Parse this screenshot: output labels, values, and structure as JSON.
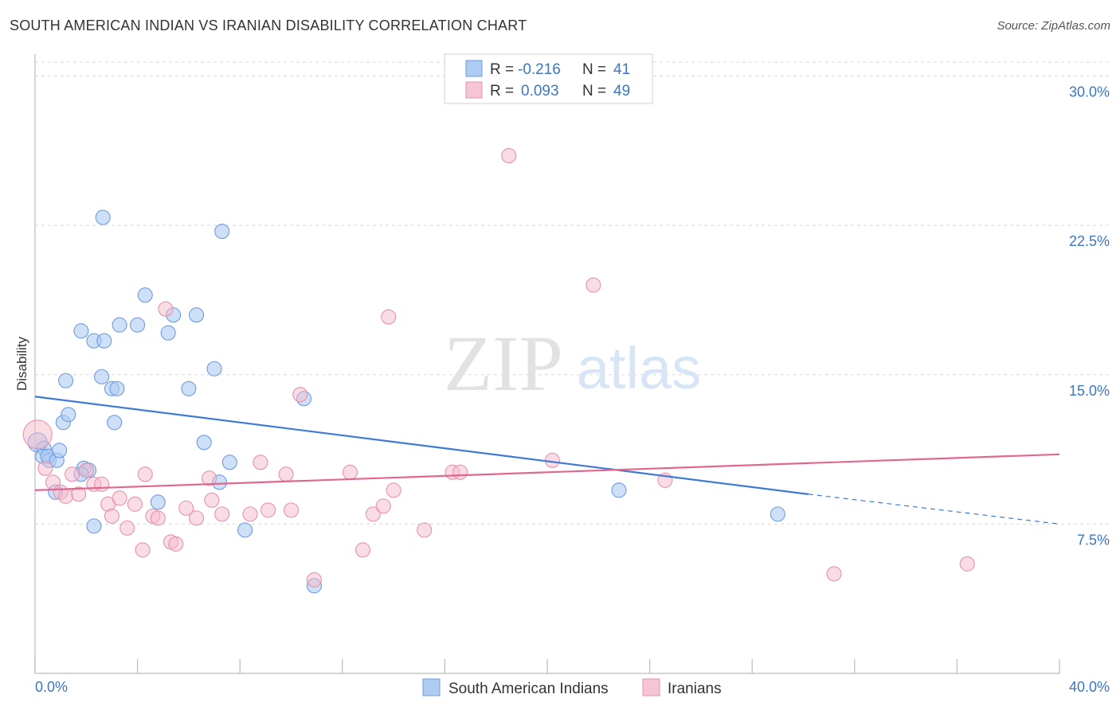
{
  "title": "SOUTH AMERICAN INDIAN VS IRANIAN DISABILITY CORRELATION CHART",
  "source": "Source: ZipAtlas.com",
  "watermark": {
    "zip": "ZIP",
    "atlas": "atlas"
  },
  "colors": {
    "blue": "#3f7ad6",
    "blue_fill": "#aecbf2",
    "pink": "#e0688f",
    "pink_fill": "#f6b9cc",
    "axis_text": "#3b76c4",
    "grid": "#d8d8d8"
  },
  "legend": {
    "rows": [
      {
        "r_label": "R =",
        "r_value": "-0.216",
        "n_label": "N =",
        "n_value": "41"
      },
      {
        "r_label": "R =",
        "r_value": "0.093",
        "n_label": "N =",
        "n_value": "49"
      }
    ]
  },
  "chart_data": {
    "type": "scatter",
    "xlabel": "",
    "ylabel": "Disability",
    "xlim": [
      0,
      40
    ],
    "ylim": [
      0,
      30.7
    ],
    "x_tick_labels": [
      "0.0%",
      "40.0%"
    ],
    "y_ticks": [
      7.5,
      15.0,
      22.5,
      30.0
    ],
    "y_tick_labels": [
      "7.5%",
      "15.0%",
      "22.5%",
      "30.0%"
    ],
    "legend_position": "top-center",
    "series": [
      {
        "name": "South American Indians",
        "color": "#3f7ad6",
        "trend": {
          "x0": 0,
          "y0": 13.9,
          "x1": 30.2,
          "y1": 9.0,
          "dash_to_x": 40,
          "dash_to_y": 7.5
        },
        "points": [
          [
            0.1,
            11.6
          ],
          [
            0.35,
            11.3
          ],
          [
            0.3,
            10.9
          ],
          [
            0.55,
            10.7
          ],
          [
            0.5,
            10.9
          ],
          [
            0.85,
            10.7
          ],
          [
            0.95,
            11.2
          ],
          [
            1.1,
            12.6
          ],
          [
            1.3,
            13.0
          ],
          [
            1.2,
            14.7
          ],
          [
            0.8,
            9.1
          ],
          [
            1.9,
            10.3
          ],
          [
            2.1,
            10.2
          ],
          [
            1.8,
            10.0
          ],
          [
            2.3,
            7.4
          ],
          [
            1.8,
            17.2
          ],
          [
            2.3,
            16.7
          ],
          [
            2.7,
            16.7
          ],
          [
            2.6,
            14.9
          ],
          [
            3.0,
            14.3
          ],
          [
            3.2,
            14.3
          ],
          [
            3.1,
            12.6
          ],
          [
            3.3,
            17.5
          ],
          [
            4.0,
            17.5
          ],
          [
            2.65,
            22.9
          ],
          [
            4.3,
            19.0
          ],
          [
            5.2,
            17.1
          ],
          [
            5.4,
            18.0
          ],
          [
            6.3,
            18.0
          ],
          [
            6.0,
            14.3
          ],
          [
            6.6,
            11.6
          ],
          [
            7.0,
            15.3
          ],
          [
            7.3,
            22.2
          ],
          [
            7.6,
            10.6
          ],
          [
            7.2,
            9.6
          ],
          [
            4.8,
            8.6
          ],
          [
            8.2,
            7.2
          ],
          [
            10.5,
            13.8
          ],
          [
            10.9,
            4.4
          ],
          [
            22.8,
            9.2
          ],
          [
            29.0,
            8.0
          ]
        ]
      },
      {
        "name": "Iranians",
        "color": "#e0688f",
        "trend": {
          "x0": 0,
          "y0": 9.2,
          "x1": 40,
          "y1": 11.0
        },
        "points": [
          [
            0.1,
            12.0
          ],
          [
            0.4,
            10.3
          ],
          [
            0.7,
            9.6
          ],
          [
            1.0,
            9.1
          ],
          [
            1.2,
            8.9
          ],
          [
            1.45,
            10.0
          ],
          [
            1.7,
            9.0
          ],
          [
            2.0,
            10.2
          ],
          [
            2.3,
            9.5
          ],
          [
            2.6,
            9.5
          ],
          [
            2.85,
            8.5
          ],
          [
            3.0,
            7.9
          ],
          [
            3.3,
            8.8
          ],
          [
            3.6,
            7.3
          ],
          [
            3.9,
            8.5
          ],
          [
            4.2,
            6.2
          ],
          [
            4.3,
            10.0
          ],
          [
            4.6,
            7.9
          ],
          [
            4.8,
            7.8
          ],
          [
            5.1,
            18.3
          ],
          [
            5.3,
            6.6
          ],
          [
            5.5,
            6.5
          ],
          [
            5.9,
            8.3
          ],
          [
            6.3,
            7.8
          ],
          [
            6.8,
            9.8
          ],
          [
            6.9,
            8.7
          ],
          [
            7.3,
            8.0
          ],
          [
            8.4,
            8.0
          ],
          [
            8.8,
            10.6
          ],
          [
            9.1,
            8.2
          ],
          [
            9.8,
            10.0
          ],
          [
            10.0,
            8.2
          ],
          [
            10.35,
            14.0
          ],
          [
            10.9,
            4.7
          ],
          [
            12.3,
            10.1
          ],
          [
            12.8,
            6.2
          ],
          [
            13.2,
            8.0
          ],
          [
            13.6,
            8.4
          ],
          [
            14.0,
            9.2
          ],
          [
            13.8,
            17.9
          ],
          [
            15.2,
            7.2
          ],
          [
            16.3,
            10.1
          ],
          [
            16.6,
            10.1
          ],
          [
            18.5,
            26.0
          ],
          [
            20.2,
            10.7
          ],
          [
            21.8,
            19.5
          ],
          [
            24.6,
            9.7
          ],
          [
            31.2,
            5.0
          ],
          [
            36.4,
            5.5
          ]
        ]
      }
    ]
  }
}
